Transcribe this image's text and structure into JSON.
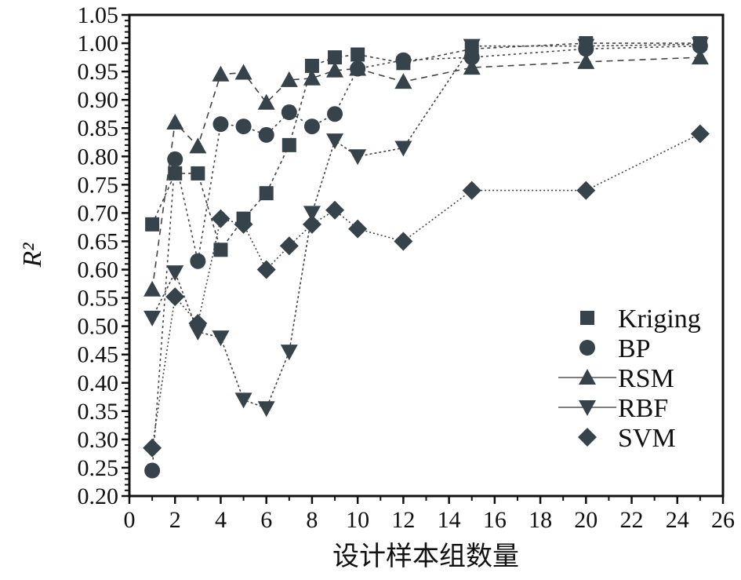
{
  "chart_data": {
    "type": "line",
    "xlabel": "设计样本组数量",
    "ylabel": "R²",
    "xlim": [
      0,
      26
    ],
    "ylim": [
      0.2,
      1.05
    ],
    "xticks": [
      "0",
      "2",
      "4",
      "6",
      "8",
      "10",
      "12",
      "14",
      "16",
      "18",
      "20",
      "22",
      "24",
      "26"
    ],
    "yticks": [
      "0.20",
      "0.25",
      "0.30",
      "0.35",
      "0.40",
      "0.45",
      "0.50",
      "0.55",
      "0.60",
      "0.65",
      "0.70",
      "0.75",
      "0.80",
      "0.85",
      "0.90",
      "0.95",
      "1.00",
      "1.05"
    ],
    "grid": false,
    "legend_position": "bottom-right",
    "marker_color": "#37434a",
    "x": [
      1,
      2,
      3,
      4,
      5,
      6,
      7,
      8,
      9,
      10,
      12,
      15,
      20,
      25
    ],
    "series": [
      {
        "name": "Kriging",
        "marker": "square",
        "values": [
          0.68,
          0.77,
          0.77,
          0.635,
          0.69,
          0.735,
          0.82,
          0.96,
          0.975,
          0.98,
          0.965,
          0.99,
          1.0,
          1.0
        ]
      },
      {
        "name": "BP",
        "marker": "circle",
        "values": [
          0.245,
          0.795,
          0.615,
          0.857,
          0.853,
          0.838,
          0.878,
          0.853,
          0.875,
          0.955,
          0.97,
          0.975,
          0.99,
          0.995
        ]
      },
      {
        "name": "RSM",
        "marker": "triangle-up",
        "values": [
          0.565,
          0.86,
          0.818,
          0.945,
          0.948,
          0.895,
          0.935,
          0.938,
          0.952,
          0.955,
          0.932,
          0.957,
          0.967,
          0.975
        ]
      },
      {
        "name": "RBF",
        "marker": "triangle-down",
        "values": [
          0.515,
          0.595,
          0.49,
          0.48,
          0.37,
          0.355,
          0.455,
          0.7,
          0.828,
          0.8,
          0.815,
          0.995,
          0.995,
          0.998
        ]
      },
      {
        "name": "SVM",
        "marker": "diamond",
        "values": [
          0.285,
          0.552,
          0.505,
          0.69,
          0.68,
          0.6,
          0.642,
          0.68,
          0.705,
          0.672,
          0.65,
          0.74,
          0.74,
          0.84
        ]
      }
    ]
  }
}
